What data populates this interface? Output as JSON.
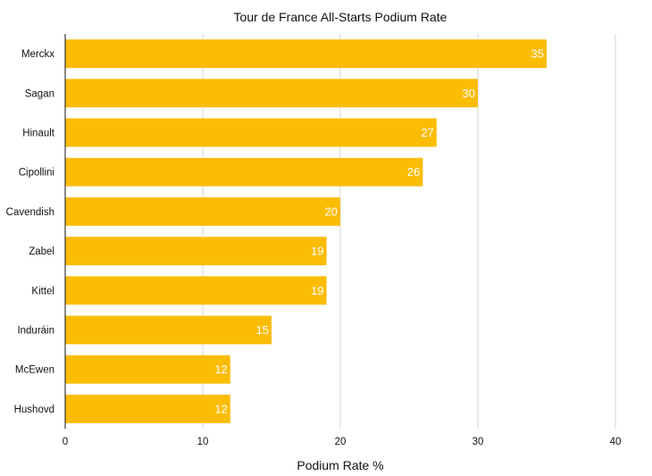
{
  "chart_data": {
    "type": "bar",
    "orientation": "horizontal",
    "title": "Tour de France All-Starts Podium Rate",
    "xlabel": "Podium Rate %",
    "ylabel": "",
    "categories": [
      "Merckx",
      "Sagan",
      "Hinault",
      "Cipollini",
      "Cavendish",
      "Zabel",
      "Kittel",
      "Induráin",
      "McEwen",
      "Hushovd"
    ],
    "values": [
      35,
      30,
      27,
      26,
      20,
      19,
      19,
      15,
      12,
      12
    ],
    "xlim": [
      0,
      40
    ],
    "xticks": [
      0,
      10,
      20,
      30,
      40
    ],
    "grid": true,
    "bar_color": "#FBBC04",
    "data_labels": true
  }
}
